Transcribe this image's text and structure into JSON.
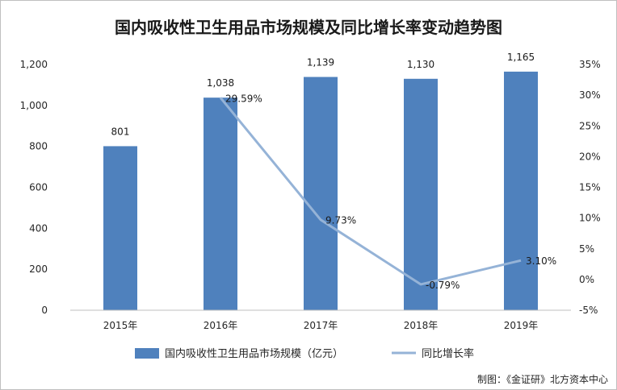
{
  "chart_data": {
    "type": "bar",
    "title": "国内吸收性卫生用品市场规模及同比增长率变动趋势图",
    "categories": [
      "2015年",
      "2016年",
      "2017年",
      "2018年",
      "2019年"
    ],
    "series": [
      {
        "name": "国内吸收性卫生用品市场规模（亿元）",
        "type": "bar",
        "axis": "left",
        "values": [
          801,
          1038,
          1139,
          1130,
          1165
        ],
        "labels": [
          "801",
          "1,038",
          "1,139",
          "1,130",
          "1,165"
        ],
        "color": "#4f81bd"
      },
      {
        "name": "同比增长率",
        "type": "line",
        "axis": "right",
        "values": [
          null,
          29.59,
          9.73,
          -0.79,
          3.1
        ],
        "labels": [
          "",
          "29.59%",
          "9.73%",
          "-0.79%",
          "3.10%"
        ],
        "color": "#95b3d7"
      }
    ],
    "y_left": {
      "ylim": [
        0,
        1200
      ],
      "ticks": [
        "0",
        "200",
        "400",
        "600",
        "800",
        "1,000",
        "1,200"
      ]
    },
    "y_right": {
      "ylim": [
        -5,
        35
      ],
      "ticks": [
        "-5%",
        "0%",
        "5%",
        "10%",
        "15%",
        "20%",
        "25%",
        "30%",
        "35%"
      ]
    },
    "grid": false,
    "legend": "bottom"
  },
  "source": "制图：《金证研》北方资本中心"
}
